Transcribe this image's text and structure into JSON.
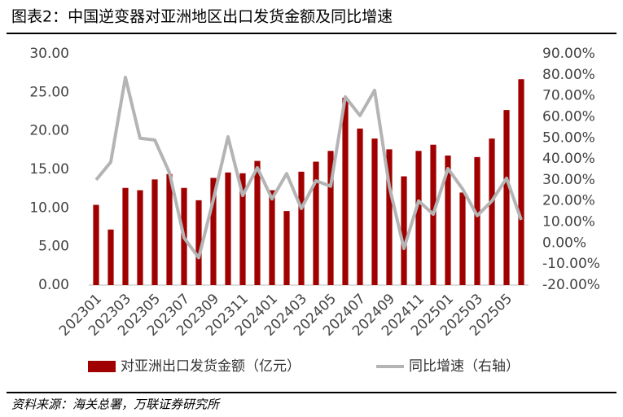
{
  "chart_data": {
    "type": "bar",
    "title": "图表2：中国逆变器对亚洲地区出口发货金额及同比增速",
    "source": "资料来源：海关总署，万联证券研究所",
    "categories": [
      "202301",
      null,
      "202303",
      null,
      "202305",
      null,
      "202307",
      null,
      "202309",
      null,
      "202311",
      null,
      "202401",
      null,
      "202403",
      null,
      "202405",
      null,
      "202407",
      null,
      "202409",
      null,
      "202411",
      null,
      "202501",
      null,
      "202503",
      null,
      "202505",
      null
    ],
    "series": [
      {
        "name": "对亚洲出口发货金额（亿元）",
        "color": "#a00000",
        "type": "bar",
        "values": [
          10.4,
          7.2,
          12.6,
          12.3,
          13.7,
          14.4,
          12.6,
          11.0,
          13.9,
          14.6,
          14.5,
          16.1,
          12.3,
          9.6,
          14.7,
          16.0,
          17.4,
          24.3,
          20.3,
          19.0,
          17.6,
          14.1,
          17.4,
          18.2,
          16.8,
          12.0,
          16.6,
          19.0,
          22.7,
          26.7
        ]
      },
      {
        "name": "同比增速（右轴）",
        "color": "#b4b4b4",
        "type": "line",
        "axis": "y2",
        "values": [
          30,
          38.5,
          78.8,
          49.8,
          49,
          33.5,
          2.5,
          -7,
          20.7,
          50.5,
          22.6,
          35.8,
          21,
          33,
          16.4,
          29.6,
          27,
          69.5,
          60.6,
          72.6,
          27,
          -2.6,
          20,
          13.7,
          35.4,
          25.7,
          13,
          20,
          30.8,
          11
        ]
      }
    ],
    "ylim": [
      0,
      30
    ],
    "yticks": [
      {
        "value": 0,
        "label": "0.00"
      },
      {
        "value": 5,
        "label": "5.00"
      },
      {
        "value": 10,
        "label": "10.00"
      },
      {
        "value": 15,
        "label": "15.00"
      },
      {
        "value": 20,
        "label": "20.00"
      },
      {
        "value": 25,
        "label": "25.00"
      },
      {
        "value": 30,
        "label": "30.00"
      }
    ],
    "y2lim": [
      -20,
      90
    ],
    "y2ticks": [
      {
        "value": -20,
        "label": "-20.00%"
      },
      {
        "value": -10,
        "label": "-10.00%"
      },
      {
        "value": 0,
        "label": "0.00%"
      },
      {
        "value": 10,
        "label": "10.00%"
      },
      {
        "value": 20,
        "label": "20.00%"
      },
      {
        "value": 30,
        "label": "30.00%"
      },
      {
        "value": 40,
        "label": "40.00%"
      },
      {
        "value": 50,
        "label": "50.00%"
      },
      {
        "value": 60,
        "label": "60.00%"
      },
      {
        "value": 70,
        "label": "70.00%"
      },
      {
        "value": 80,
        "label": "80.00%"
      },
      {
        "value": 90,
        "label": "90.00%"
      }
    ],
    "grid": false
  }
}
